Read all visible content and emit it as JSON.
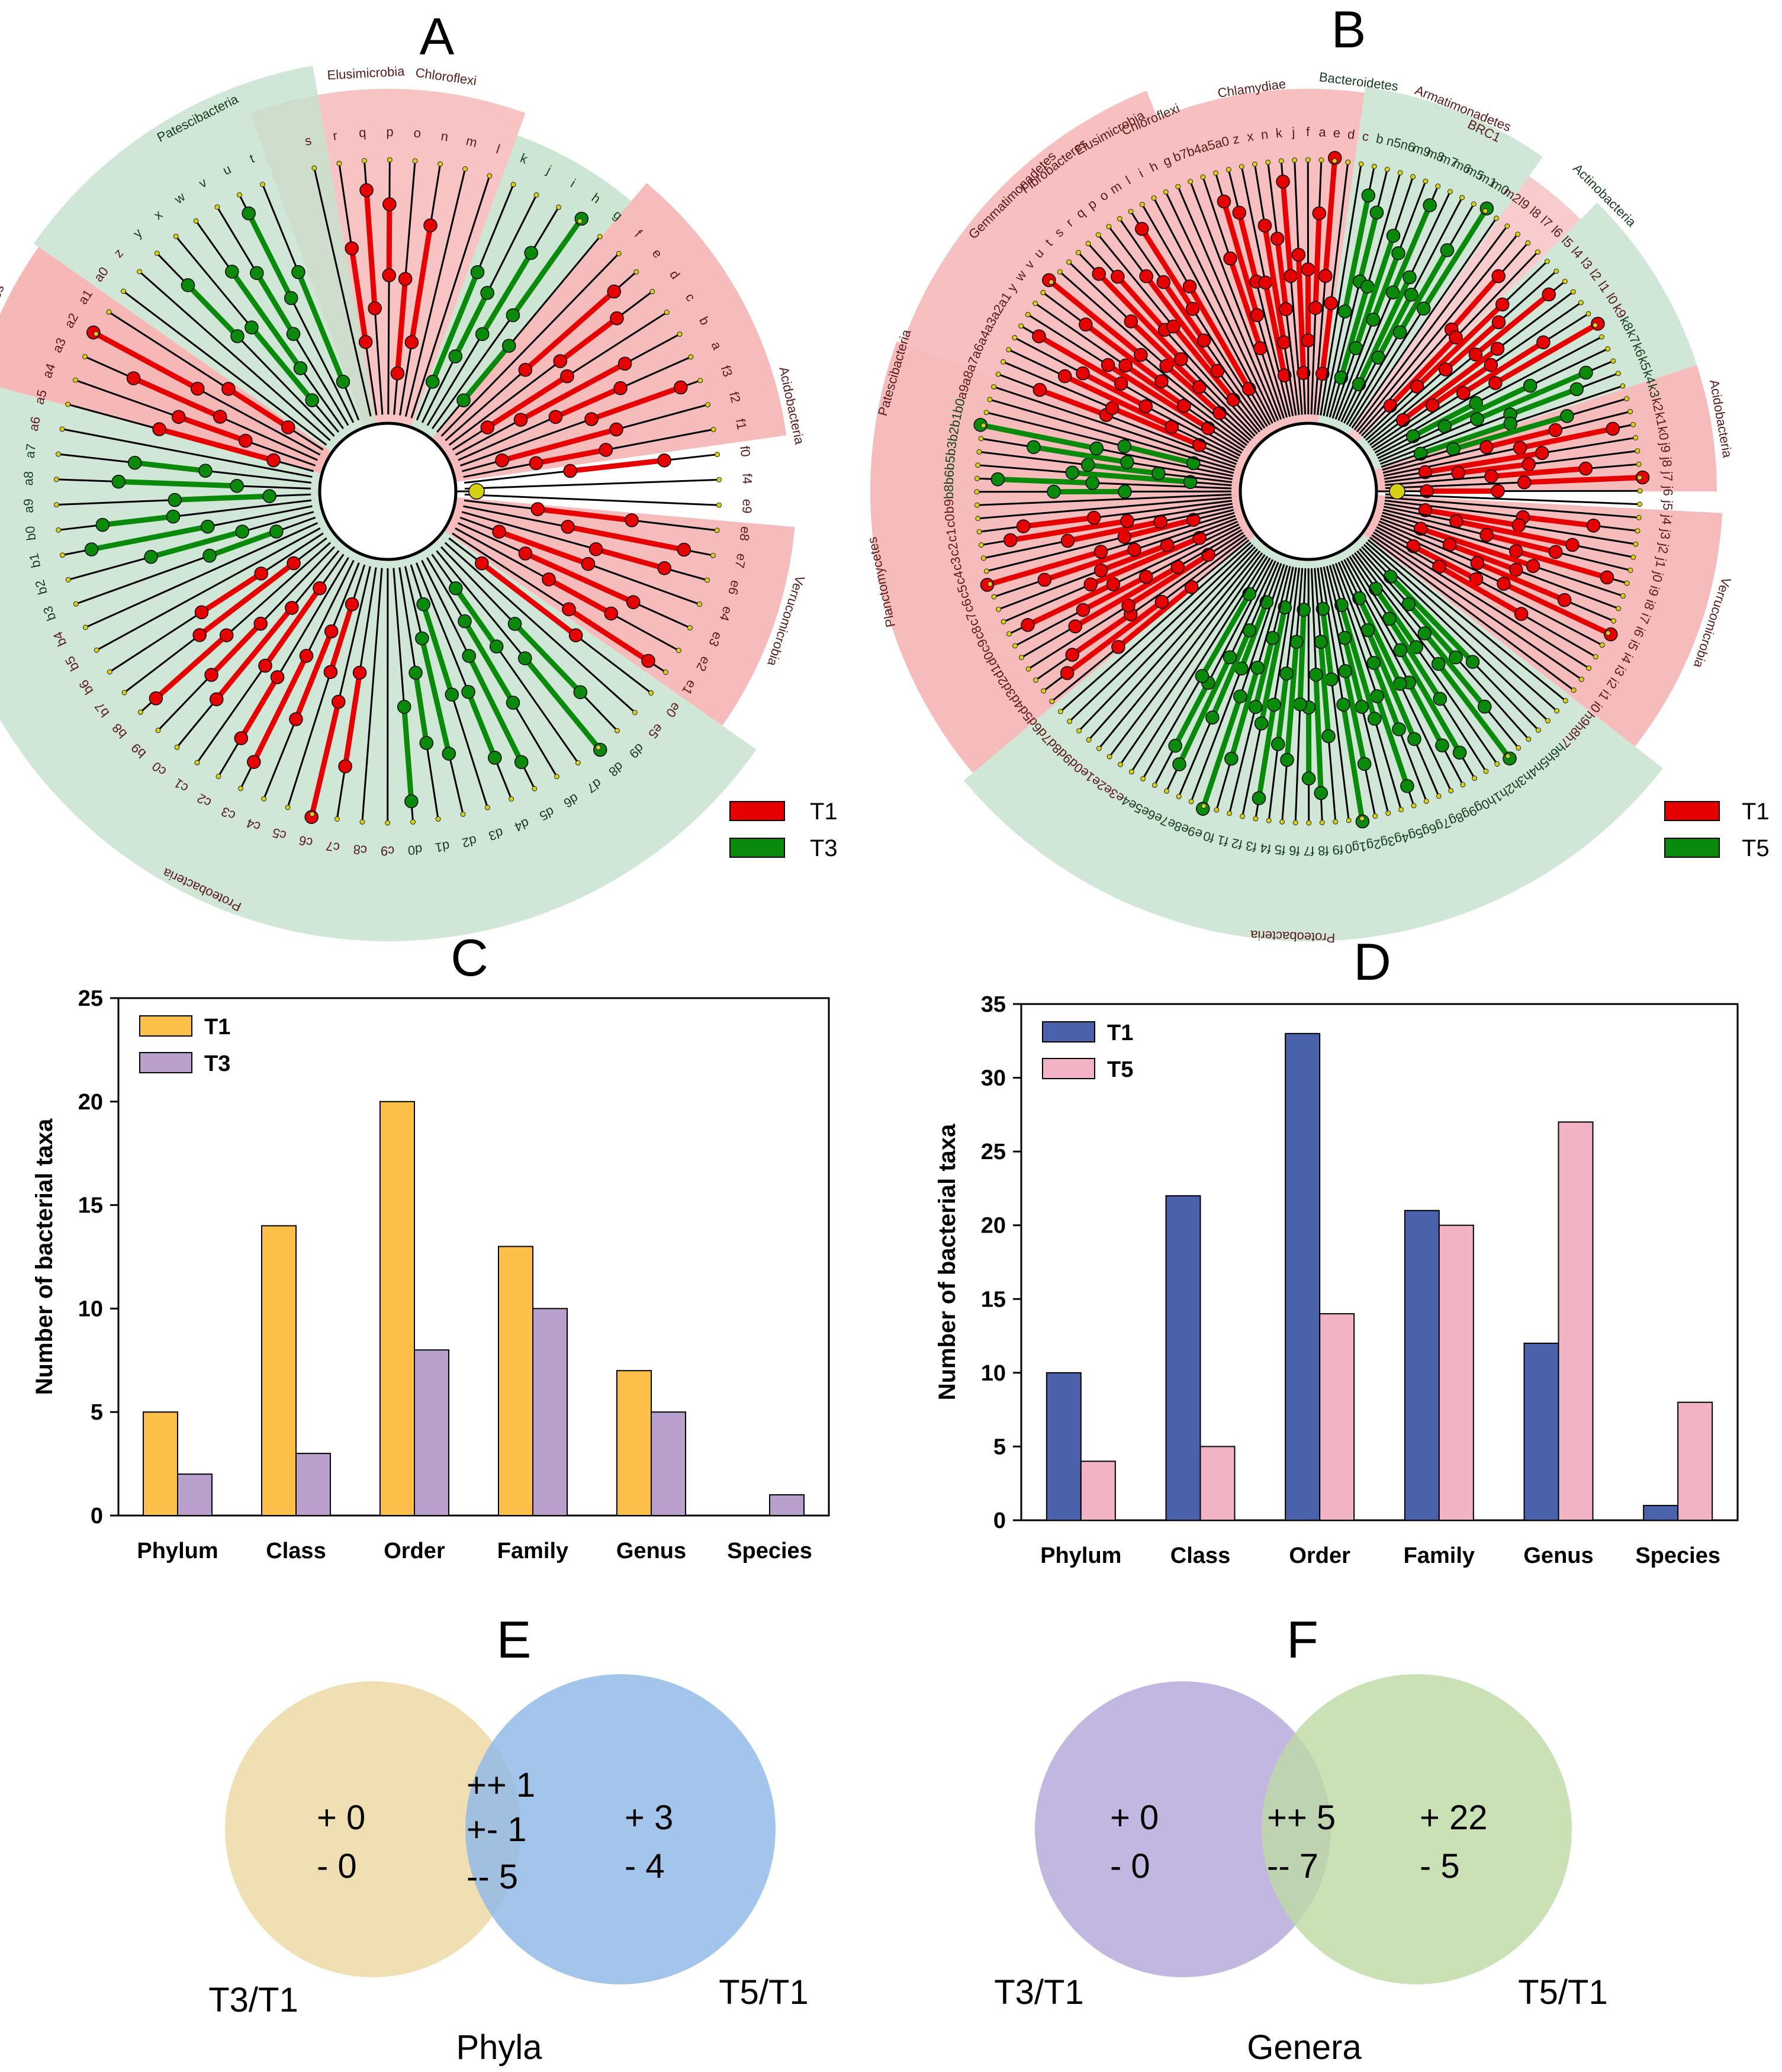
{
  "panels": {
    "A": {
      "letter": "A",
      "legend": [
        {
          "name": "T1",
          "color": "#e60000"
        },
        {
          "name": "T3",
          "color": "#0a8a0a"
        }
      ]
    },
    "B": {
      "letter": "B",
      "legend": [
        {
          "name": "T1",
          "color": "#e60000"
        },
        {
          "name": "T5",
          "color": "#0a8a0a"
        }
      ]
    },
    "C": {
      "letter": "C"
    },
    "D": {
      "letter": "D"
    },
    "E": {
      "letter": "E"
    },
    "F": {
      "letter": "F"
    }
  },
  "cladogram_A": {
    "phyla": [
      "Elusimicrobia",
      "Chloroflexi",
      "Acidobacteria",
      "Verrucomicrobia",
      "Proteobacteria",
      "Planctomycetes",
      "Patescibacteria"
    ],
    "labels": [
      "s",
      "r",
      "q",
      "p",
      "o",
      "n",
      "m",
      "l",
      "k",
      "j",
      "i",
      "h",
      "g",
      "f",
      "e",
      "d",
      "c",
      "b",
      "a",
      "f3",
      "f2",
      "f1",
      "f0",
      "f4",
      "e9",
      "e8",
      "e7",
      "e6",
      "e4",
      "e3",
      "e2",
      "e1",
      "e0",
      "e5",
      "d9",
      "d8",
      "d7",
      "d6",
      "d5",
      "d4",
      "d3",
      "d2",
      "d1",
      "d0",
      "c9",
      "c8",
      "c7",
      "c6",
      "c5",
      "c4",
      "c3",
      "c2",
      "c1",
      "c0",
      "b9",
      "b8",
      "b7",
      "b6",
      "b5",
      "b4",
      "b3",
      "b2",
      "b1",
      "b0",
      "a9",
      "a8",
      "a7",
      "a6",
      "a5",
      "a4",
      "a3",
      "a2",
      "a1",
      "a0",
      "z",
      "y",
      "x",
      "w",
      "v",
      "u",
      "t"
    ]
  },
  "cladogram_B": {
    "phyla": [
      "Chlamydiae",
      "Bacteroidetes",
      "Armatimonadetes",
      "BRC1",
      "Actinobacteria",
      "Acidobacteria",
      "Verrucomicrobia",
      "Proteobacteria",
      "Planctomycetes",
      "Patescibacteria",
      "Gemmatimonadetes",
      "Fibrobacteres",
      "Elusimicrobia",
      "Chloroflexi"
    ],
    "labels": [
      "b7",
      "b4",
      "a5",
      "a0",
      "z",
      "x",
      "n",
      "k",
      "j",
      "f",
      "a",
      "e",
      "d",
      "c",
      "b",
      "n5",
      "n6",
      "m9",
      "m8",
      "m7",
      "m6",
      "m5",
      "m1",
      "m0",
      "m2",
      "l9",
      "l8",
      "l7",
      "l6",
      "l5",
      "l4",
      "l3",
      "l2",
      "l1",
      "l0",
      "k9",
      "k8",
      "k7",
      "k6",
      "k5",
      "k4",
      "k3",
      "k2",
      "k1",
      "k0",
      "j9",
      "j8",
      "j7",
      "j6",
      "j5",
      "j4",
      "j3",
      "j2",
      "j1",
      "j0",
      "i9",
      "i8",
      "i7",
      "i6",
      "i5",
      "i4",
      "i3",
      "i2",
      "i1",
      "i0",
      "h9",
      "h8",
      "h7",
      "h6",
      "h5",
      "h4",
      "h3",
      "h2",
      "h1",
      "h0",
      "g9",
      "g8",
      "g7",
      "g6",
      "g5",
      "g4",
      "g3",
      "g2",
      "g1",
      "g0",
      "f9",
      "f8",
      "f7",
      "f6",
      "f5",
      "f4",
      "f3",
      "f2",
      "f1",
      "f0",
      "e9",
      "e8",
      "e7",
      "e6",
      "e5",
      "e4",
      "e3",
      "e2",
      "e1",
      "e0",
      "d9",
      "d8",
      "d7",
      "d6",
      "d5",
      "d4",
      "d3",
      "d2",
      "d1",
      "d0",
      "c9",
      "c8",
      "c7",
      "c6",
      "c5",
      "c4",
      "c3",
      "c2",
      "c1",
      "c0",
      "b9",
      "b8",
      "b6",
      "b5",
      "b3",
      "b2",
      "b1",
      "b0",
      "a9",
      "a8",
      "a7",
      "a6",
      "a4",
      "a3",
      "a2",
      "a1",
      "y",
      "w",
      "v",
      "u",
      "t",
      "s",
      "r",
      "q",
      "p",
      "o",
      "m",
      "l",
      "i",
      "h",
      "g"
    ]
  },
  "chart_data": [
    {
      "id": "C",
      "type": "bar",
      "categories": [
        "Phylum",
        "Class",
        "Order",
        "Family",
        "Genus",
        "Species"
      ],
      "series": [
        {
          "name": "T1",
          "values": [
            5,
            14,
            20,
            13,
            7,
            0
          ],
          "color": "#fdbf47"
        },
        {
          "name": "T3",
          "values": [
            2,
            3,
            8,
            10,
            5,
            1
          ],
          "color": "#b9a0cc"
        }
      ],
      "ylabel": "Number of bacterial taxa",
      "ylim": [
        0,
        25
      ],
      "yticks": [
        0,
        5,
        10,
        15,
        20,
        25
      ],
      "legend": "top-left"
    },
    {
      "id": "D",
      "type": "bar",
      "categories": [
        "Phylum",
        "Class",
        "Order",
        "Family",
        "Genus",
        "Species"
      ],
      "series": [
        {
          "name": "T1",
          "values": [
            10,
            22,
            33,
            21,
            12,
            1
          ],
          "color": "#4a62ac"
        },
        {
          "name": "T5",
          "values": [
            4,
            5,
            14,
            20,
            27,
            8
          ],
          "color": "#f2b3c4"
        }
      ],
      "ylabel": "Number of bacterial taxa",
      "ylim": [
        0,
        35
      ],
      "yticks": [
        0,
        5,
        10,
        15,
        20,
        25,
        30,
        35
      ],
      "legend": "top-left"
    }
  ],
  "venn_E": {
    "left": {
      "label": "T3/T1",
      "lines": [
        "+ 0",
        "- 0"
      ],
      "color": "#efd9a7"
    },
    "right": {
      "label": "T5/T1",
      "lines": [
        "+ 3",
        "- 4"
      ],
      "color": "#8fb8e6"
    },
    "overlap": [
      "++ 1",
      "+- 1",
      "-- 5"
    ],
    "title": "Phyla"
  },
  "venn_F": {
    "left": {
      "label": "T3/T1",
      "lines": [
        "+ 0",
        "- 0"
      ],
      "color": "#bcb1dd"
    },
    "right": {
      "label": "T5/T1",
      "lines": [
        "+ 22",
        "- 5"
      ],
      "color": "#bddaa5"
    },
    "overlap": [
      "++ 5",
      "-- 7"
    ],
    "title": "Genera"
  }
}
